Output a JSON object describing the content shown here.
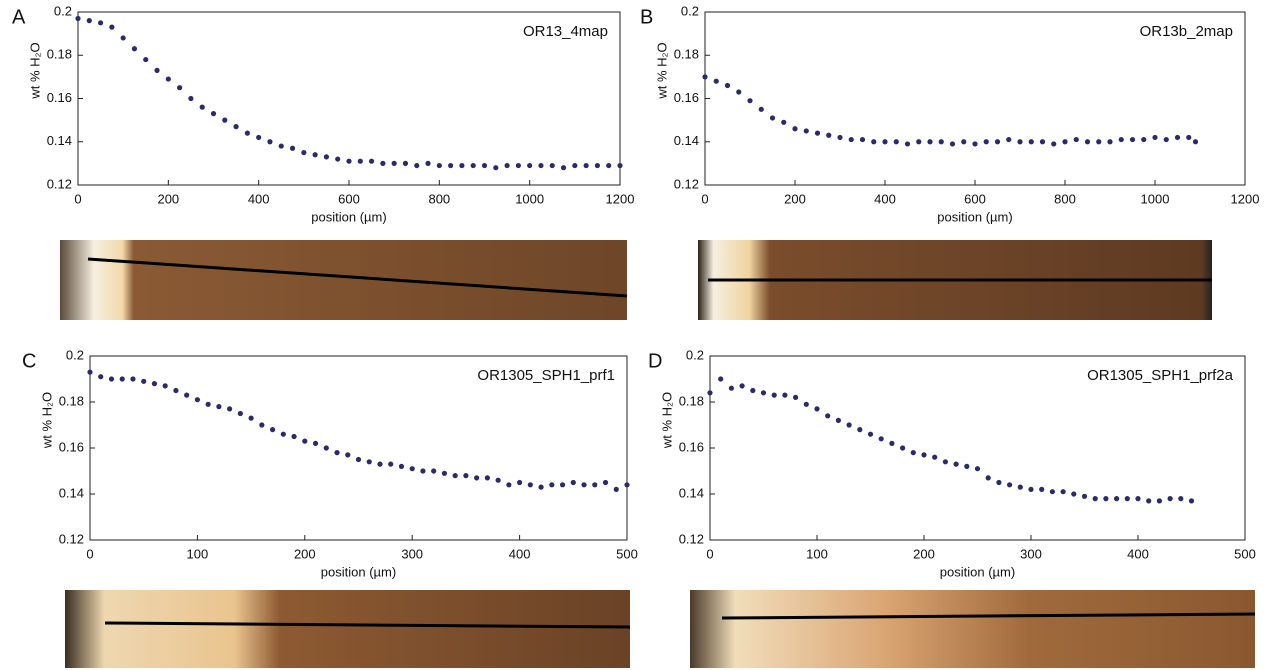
{
  "chart_data": [
    {
      "type": "scatter",
      "panel": "A",
      "title": "OR13_4map",
      "xlabel": "position (µm)",
      "ylabel": "wt % H₂O",
      "color": "#2b2a6b",
      "xlim": [
        0,
        1200
      ],
      "xticks": [
        0,
        200,
        400,
        600,
        800,
        1000,
        1200
      ],
      "ylim": [
        0.12,
        0.2
      ],
      "yticks": [
        0.12,
        0.14,
        0.16,
        0.18,
        0.2
      ],
      "x": [
        0,
        25,
        50,
        75,
        100,
        125,
        150,
        175,
        200,
        225,
        250,
        275,
        300,
        325,
        350,
        375,
        400,
        425,
        450,
        475,
        500,
        525,
        550,
        575,
        600,
        625,
        650,
        675,
        700,
        725,
        750,
        775,
        800,
        825,
        850,
        875,
        900,
        925,
        950,
        975,
        1000,
        1025,
        1050,
        1075,
        1100,
        1125,
        1150,
        1175,
        1200
      ],
      "values": [
        0.197,
        0.196,
        0.195,
        0.193,
        0.188,
        0.183,
        0.178,
        0.173,
        0.169,
        0.165,
        0.16,
        0.156,
        0.153,
        0.15,
        0.147,
        0.144,
        0.142,
        0.14,
        0.138,
        0.137,
        0.135,
        0.134,
        0.133,
        0.132,
        0.131,
        0.131,
        0.131,
        0.13,
        0.13,
        0.13,
        0.129,
        0.13,
        0.129,
        0.129,
        0.129,
        0.129,
        0.129,
        0.128,
        0.129,
        0.129,
        0.129,
        0.129,
        0.129,
        0.128,
        0.129,
        0.129,
        0.129,
        0.129,
        0.129
      ]
    },
    {
      "type": "scatter",
      "panel": "B",
      "title": "OR13b_2map",
      "xlabel": "position (µm)",
      "ylabel": "wt % H₂O",
      "color": "#2b2a6b",
      "xlim": [
        0,
        1200
      ],
      "xticks": [
        0,
        200,
        400,
        600,
        800,
        1000,
        1200
      ],
      "ylim": [
        0.12,
        0.2
      ],
      "yticks": [
        0.12,
        0.14,
        0.16,
        0.18,
        0.2
      ],
      "x": [
        0,
        25,
        50,
        75,
        100,
        125,
        150,
        175,
        200,
        225,
        250,
        275,
        300,
        325,
        350,
        375,
        400,
        425,
        450,
        475,
        500,
        525,
        550,
        575,
        600,
        625,
        650,
        675,
        700,
        725,
        750,
        775,
        800,
        825,
        850,
        875,
        900,
        925,
        950,
        975,
        1000,
        1025,
        1050,
        1075,
        1090
      ],
      "values": [
        0.17,
        0.168,
        0.166,
        0.163,
        0.159,
        0.155,
        0.151,
        0.149,
        0.146,
        0.145,
        0.144,
        0.143,
        0.142,
        0.141,
        0.141,
        0.14,
        0.14,
        0.14,
        0.139,
        0.14,
        0.14,
        0.14,
        0.139,
        0.14,
        0.139,
        0.14,
        0.14,
        0.141,
        0.14,
        0.14,
        0.14,
        0.139,
        0.14,
        0.141,
        0.14,
        0.14,
        0.14,
        0.141,
        0.141,
        0.141,
        0.142,
        0.141,
        0.142,
        0.142,
        0.14
      ]
    },
    {
      "type": "scatter",
      "panel": "C",
      "title": "OR1305_SPH1_prf1",
      "xlabel": "position (µm)",
      "ylabel": "wt % H₂O",
      "color": "#2b2a6b",
      "xlim": [
        0,
        500
      ],
      "xticks": [
        0,
        100,
        200,
        300,
        400,
        500
      ],
      "ylim": [
        0.12,
        0.2
      ],
      "yticks": [
        0.12,
        0.14,
        0.16,
        0.18,
        0.2
      ],
      "x": [
        0,
        10,
        20,
        30,
        40,
        50,
        60,
        70,
        80,
        90,
        100,
        110,
        120,
        130,
        140,
        150,
        160,
        170,
        180,
        190,
        200,
        210,
        220,
        230,
        240,
        250,
        260,
        270,
        280,
        290,
        300,
        310,
        320,
        330,
        340,
        350,
        360,
        370,
        380,
        390,
        400,
        410,
        420,
        430,
        440,
        450,
        460,
        470,
        480,
        490,
        500
      ],
      "values": [
        0.193,
        0.191,
        0.19,
        0.19,
        0.19,
        0.189,
        0.188,
        0.187,
        0.185,
        0.183,
        0.181,
        0.179,
        0.178,
        0.177,
        0.175,
        0.173,
        0.17,
        0.168,
        0.166,
        0.165,
        0.163,
        0.162,
        0.16,
        0.158,
        0.157,
        0.155,
        0.154,
        0.153,
        0.153,
        0.152,
        0.151,
        0.15,
        0.15,
        0.149,
        0.148,
        0.148,
        0.147,
        0.147,
        0.146,
        0.144,
        0.145,
        0.144,
        0.143,
        0.144,
        0.144,
        0.145,
        0.144,
        0.144,
        0.145,
        0.142,
        0.144
      ]
    },
    {
      "type": "scatter",
      "panel": "D",
      "title": "OR1305_SPH1_prf2a",
      "xlabel": "position (µm)",
      "ylabel": "wt % H₂O",
      "color": "#2b2a6b",
      "xlim": [
        0,
        500
      ],
      "xticks": [
        0,
        100,
        200,
        300,
        400,
        500
      ],
      "ylim": [
        0.12,
        0.2
      ],
      "yticks": [
        0.12,
        0.14,
        0.16,
        0.18,
        0.2
      ],
      "x": [
        0,
        10,
        20,
        30,
        40,
        50,
        60,
        70,
        80,
        90,
        100,
        110,
        120,
        130,
        140,
        150,
        160,
        170,
        180,
        190,
        200,
        210,
        220,
        230,
        240,
        250,
        260,
        270,
        280,
        290,
        300,
        310,
        320,
        330,
        340,
        350,
        360,
        370,
        380,
        390,
        400,
        410,
        420,
        430,
        440,
        450
      ],
      "values": [
        0.184,
        0.19,
        0.186,
        0.187,
        0.185,
        0.184,
        0.183,
        0.183,
        0.182,
        0.179,
        0.177,
        0.174,
        0.172,
        0.17,
        0.168,
        0.166,
        0.164,
        0.162,
        0.16,
        0.158,
        0.157,
        0.156,
        0.154,
        0.153,
        0.152,
        0.151,
        0.147,
        0.145,
        0.144,
        0.143,
        0.142,
        0.142,
        0.141,
        0.141,
        0.14,
        0.139,
        0.138,
        0.138,
        0.138,
        0.138,
        0.138,
        0.137,
        0.137,
        0.138,
        0.138,
        0.137
      ]
    }
  ]
}
